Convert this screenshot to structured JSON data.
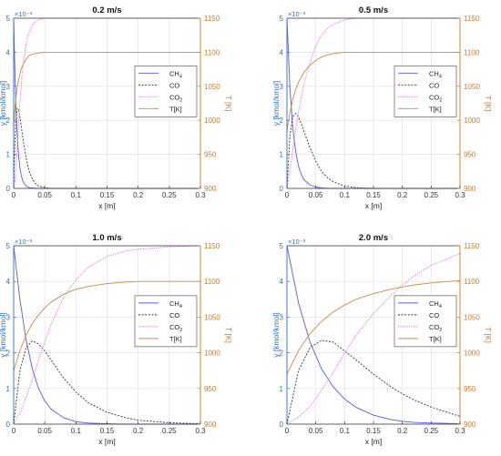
{
  "colors": {
    "ch4": "#5a5ad6",
    "co": "#333333",
    "co2": "#e066e6",
    "temp": "#c98a4a",
    "left_axis": "#2f6fbf",
    "right_axis": "#d07a2a",
    "grid": "#e2e2e2"
  },
  "chart_data": [
    {
      "type": "line",
      "title": "0.2 m/s",
      "xlabel": "x [m]",
      "ylabel": "y [kmol/kmol]",
      "y2label": "T [K]",
      "exponent_label": "×10⁻³",
      "xlim": [
        0,
        0.3
      ],
      "ylim": [
        0,
        5
      ],
      "y2lim": [
        900,
        1150
      ],
      "xticks": [
        "0",
        "0.05",
        "0.1",
        "0.15",
        "0.2",
        "0.25",
        "0.3"
      ],
      "yticks": [
        "0",
        "1",
        "2",
        "3",
        "4",
        "5"
      ],
      "y2ticks": [
        "900",
        "950",
        "1000",
        "1050",
        "1100",
        "1150"
      ],
      "grid": true,
      "legend": "middle-right",
      "x": [
        0,
        0.002,
        0.004,
        0.006,
        0.008,
        0.01,
        0.012,
        0.015,
        0.02,
        0.025,
        0.03,
        0.035,
        0.04,
        0.05,
        0.06,
        0.08,
        0.1,
        0.15,
        0.2,
        0.25,
        0.3
      ],
      "series": [
        {
          "name": "CH4",
          "axis": "left",
          "values": [
            5.0,
            3.4,
            2.2,
            1.45,
            0.95,
            0.62,
            0.4,
            0.2,
            0.07,
            0.02,
            0.01,
            0.0,
            0.0,
            0.0,
            0.0,
            0.0,
            0.0,
            0.0,
            0.0,
            0.0,
            0.0
          ]
        },
        {
          "name": "CO",
          "axis": "left",
          "values": [
            0.0,
            1.4,
            2.1,
            2.35,
            2.3,
            2.1,
            1.85,
            1.45,
            0.9,
            0.5,
            0.28,
            0.14,
            0.07,
            0.02,
            0.0,
            0.0,
            0.0,
            0.0,
            0.0,
            0.0,
            0.0
          ]
        },
        {
          "name": "CO2",
          "axis": "left",
          "values": [
            0.0,
            0.2,
            0.7,
            1.3,
            1.9,
            2.5,
            3.0,
            3.6,
            4.25,
            4.6,
            4.8,
            4.9,
            4.95,
            5.0,
            5.0,
            5.0,
            5.0,
            5.0,
            5.0,
            5.0,
            5.0
          ]
        },
        {
          "name": "T[K]",
          "axis": "right",
          "values": [
            990,
            1018,
            1036,
            1050,
            1060,
            1068,
            1075,
            1082,
            1090,
            1095,
            1097,
            1098,
            1099,
            1100,
            1100,
            1100,
            1100,
            1100,
            1100,
            1100,
            1100
          ]
        }
      ]
    },
    {
      "type": "line",
      "title": "0.5 m/s",
      "xlabel": "x [m]",
      "ylabel": "y [kmol/kmol]",
      "y2label": "T [K]",
      "exponent_label": "×10⁻³",
      "xlim": [
        0,
        0.3
      ],
      "ylim": [
        0,
        5
      ],
      "y2lim": [
        900,
        1150
      ],
      "xticks": [
        "0",
        "0.05",
        "0.1",
        "0.15",
        "0.2",
        "0.25",
        "0.3"
      ],
      "yticks": [
        "0",
        "1",
        "2",
        "3",
        "4",
        "5"
      ],
      "y2ticks": [
        "900",
        "950",
        "1000",
        "1050",
        "1100",
        "1150"
      ],
      "grid": true,
      "legend": "middle-right",
      "x": [
        0,
        0.005,
        0.01,
        0.015,
        0.02,
        0.025,
        0.03,
        0.04,
        0.05,
        0.06,
        0.07,
        0.08,
        0.1,
        0.12,
        0.15,
        0.2,
        0.25,
        0.3
      ],
      "series": [
        {
          "name": "CH4",
          "axis": "left",
          "values": [
            5.0,
            3.0,
            1.8,
            1.1,
            0.65,
            0.4,
            0.25,
            0.1,
            0.04,
            0.015,
            0.0,
            0.0,
            0.0,
            0.0,
            0.0,
            0.0,
            0.0,
            0.0
          ]
        },
        {
          "name": "CO",
          "axis": "left",
          "values": [
            0.0,
            1.5,
            2.1,
            2.2,
            2.1,
            1.9,
            1.65,
            1.2,
            0.8,
            0.5,
            0.32,
            0.2,
            0.07,
            0.02,
            0.0,
            0.0,
            0.0,
            0.0
          ]
        },
        {
          "name": "CO2",
          "axis": "left",
          "values": [
            0.0,
            0.5,
            1.1,
            1.7,
            2.25,
            2.7,
            3.1,
            3.7,
            4.2,
            4.5,
            4.7,
            4.82,
            4.95,
            5.0,
            5.0,
            5.0,
            5.0,
            5.0
          ]
        },
        {
          "name": "T[K]",
          "axis": "right",
          "values": [
            985,
            1010,
            1030,
            1045,
            1056,
            1064,
            1071,
            1081,
            1088,
            1093,
            1096,
            1098,
            1100,
            1100,
            1100,
            1100,
            1100,
            1100
          ]
        }
      ]
    },
    {
      "type": "line",
      "title": "1.0 m/s",
      "xlabel": "x [m]",
      "ylabel": "y [kmol/kmol]",
      "y2label": "T [K]",
      "exponent_label": "×10⁻³",
      "xlim": [
        0,
        0.3
      ],
      "ylim": [
        0,
        5
      ],
      "y2lim": [
        900,
        1150
      ],
      "xticks": [
        "0",
        "0.05",
        "0.1",
        "0.15",
        "0.2",
        "0.25",
        "0.3"
      ],
      "yticks": [
        "0",
        "1",
        "2",
        "3",
        "4",
        "5"
      ],
      "y2ticks": [
        "900",
        "950",
        "1000",
        "1050",
        "1100",
        "1150"
      ],
      "grid": true,
      "legend": "middle-right",
      "x": [
        0,
        0.01,
        0.02,
        0.03,
        0.04,
        0.05,
        0.06,
        0.08,
        0.1,
        0.12,
        0.15,
        0.18,
        0.2,
        0.25,
        0.3
      ],
      "series": [
        {
          "name": "CH4",
          "axis": "left",
          "values": [
            5.0,
            3.5,
            2.35,
            1.55,
            1.0,
            0.65,
            0.42,
            0.18,
            0.07,
            0.03,
            0.01,
            0.0,
            0.0,
            0.0,
            0.0
          ]
        },
        {
          "name": "CO",
          "axis": "left",
          "values": [
            0.0,
            1.5,
            2.15,
            2.33,
            2.25,
            2.05,
            1.8,
            1.3,
            0.9,
            0.6,
            0.33,
            0.18,
            0.11,
            0.04,
            0.01
          ]
        },
        {
          "name": "CO2",
          "axis": "left",
          "values": [
            0.0,
            0.3,
            0.75,
            1.25,
            1.8,
            2.3,
            2.8,
            3.55,
            4.05,
            4.4,
            4.7,
            4.85,
            4.9,
            4.97,
            5.0
          ]
        },
        {
          "name": "T[K]",
          "axis": "right",
          "values": [
            975,
            1003,
            1025,
            1041,
            1053,
            1063,
            1071,
            1082,
            1089,
            1093,
            1097,
            1099,
            1100,
            1100,
            1100
          ]
        }
      ]
    },
    {
      "type": "line",
      "title": "2.0 m/s",
      "xlabel": "x [m]",
      "ylabel": "y [kmol/kmol]",
      "y2label": "T [K]",
      "exponent_label": "×10⁻³",
      "xlim": [
        0,
        0.3
      ],
      "ylim": [
        0,
        5
      ],
      "y2lim": [
        900,
        1150
      ],
      "xticks": [
        "0",
        "0.05",
        "0.1",
        "0.15",
        "0.2",
        "0.25",
        "0.3"
      ],
      "yticks": [
        "0",
        "1",
        "2",
        "3",
        "4",
        "5"
      ],
      "y2ticks": [
        "900",
        "950",
        "1000",
        "1050",
        "1100",
        "1150"
      ],
      "grid": true,
      "legend": "middle-right",
      "x": [
        0,
        0.02,
        0.04,
        0.06,
        0.08,
        0.1,
        0.12,
        0.15,
        0.18,
        0.2,
        0.22,
        0.25,
        0.28,
        0.3
      ],
      "series": [
        {
          "name": "CH4",
          "axis": "left",
          "values": [
            5.0,
            3.4,
            2.3,
            1.55,
            1.05,
            0.7,
            0.47,
            0.25,
            0.13,
            0.08,
            0.05,
            0.03,
            0.02,
            0.01
          ]
        },
        {
          "name": "CO",
          "axis": "left",
          "values": [
            0.0,
            1.5,
            2.15,
            2.35,
            2.3,
            2.05,
            1.8,
            1.4,
            1.05,
            0.85,
            0.68,
            0.48,
            0.32,
            0.22
          ]
        },
        {
          "name": "CO2",
          "axis": "left",
          "values": [
            0.0,
            0.2,
            0.5,
            0.95,
            1.45,
            2.0,
            2.5,
            3.1,
            3.6,
            3.9,
            4.15,
            4.45,
            4.65,
            4.78
          ]
        },
        {
          "name": "T[K]",
          "axis": "right",
          "values": [
            970,
            1003,
            1027,
            1044,
            1057,
            1067,
            1075,
            1083,
            1089,
            1092,
            1095,
            1098,
            1100,
            1101
          ]
        }
      ]
    }
  ]
}
